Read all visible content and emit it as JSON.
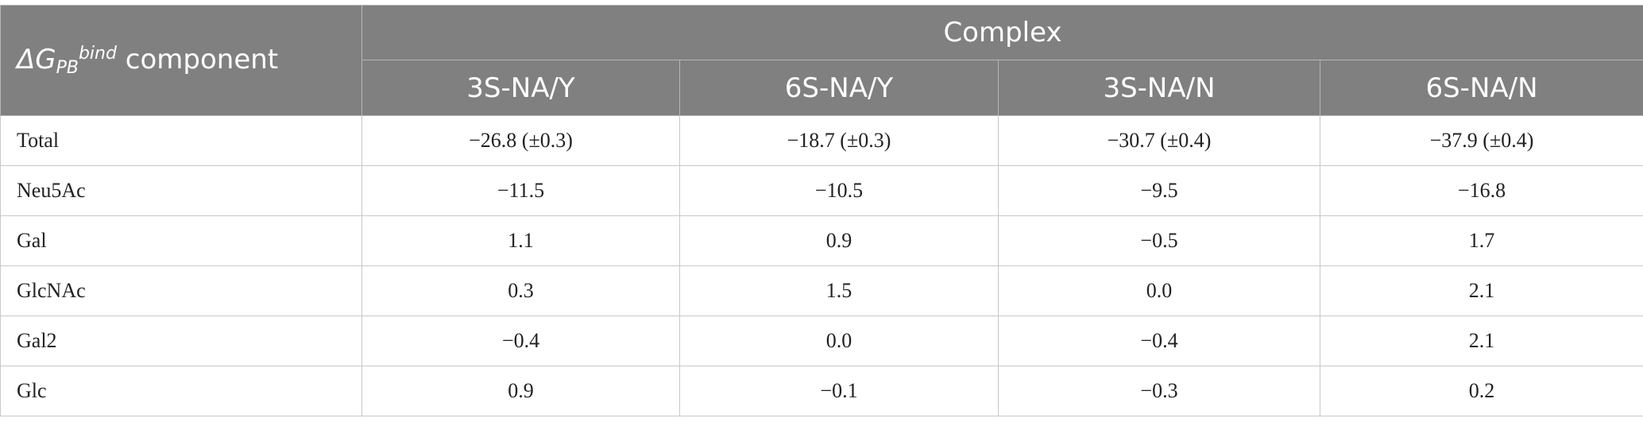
{
  "header": {
    "corner": {
      "symbol": "ΔG",
      "subscript": "PB",
      "superscript": "bind",
      "text": "component"
    },
    "group": "Complex",
    "columns": [
      "3S-NA/Y",
      "6S-NA/Y",
      "3S-NA/N",
      "6S-NA/N"
    ]
  },
  "table": {
    "rows": [
      [
        "Total",
        "−26.8 (±0.3)",
        "−18.7 (±0.3)",
        "−30.7 (±0.4)",
        "−37.9 (±0.4)"
      ],
      [
        "Neu5Ac",
        "−11.5",
        "−10.5",
        "−9.5",
        "−16.8"
      ],
      [
        "Gal",
        "1.1",
        "0.9",
        "−0.5",
        "1.7"
      ],
      [
        "GlcNAc",
        "0.3",
        "1.5",
        "0.0",
        "2.1"
      ],
      [
        "Gal2",
        "−0.4",
        "0.0",
        "−0.4",
        "2.1"
      ],
      [
        "Glc",
        "0.9",
        "−0.1",
        "−0.3",
        "0.2"
      ]
    ]
  }
}
